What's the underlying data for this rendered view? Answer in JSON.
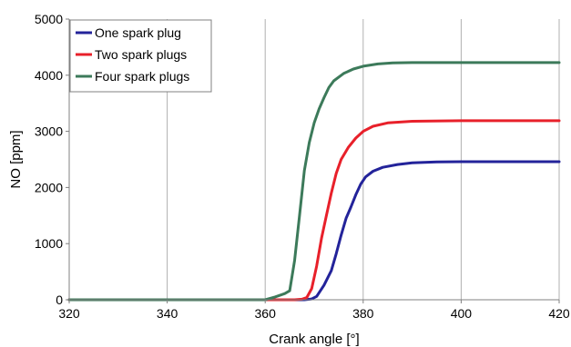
{
  "chart_data": {
    "type": "line",
    "title": "",
    "xlabel": "Crank angle [°]",
    "ylabel": "NO [ppm]",
    "xlim": [
      320,
      420
    ],
    "ylim": [
      0,
      5000
    ],
    "x_ticks": [
      320,
      340,
      360,
      380,
      400,
      420
    ],
    "y_ticks": [
      0,
      1000,
      2000,
      3000,
      4000,
      5000
    ],
    "x_tick_labels": [
      "320",
      "340",
      "360",
      "380",
      "400",
      "420"
    ],
    "y_tick_labels": [
      "0",
      "1000",
      "2000",
      "3000",
      "4000",
      "5000"
    ],
    "grid": {
      "vertical": true,
      "horizontal": false
    },
    "legend_position": "top-left",
    "series": [
      {
        "name": "One spark plug",
        "color": "#23239a",
        "points": [
          [
            320,
            0
          ],
          [
            368,
            0
          ],
          [
            369.5,
            15
          ],
          [
            370.5,
            60
          ],
          [
            372,
            260
          ],
          [
            373.5,
            520
          ],
          [
            374.5,
            820
          ],
          [
            375.5,
            1150
          ],
          [
            376.5,
            1450
          ],
          [
            377.5,
            1650
          ],
          [
            378.5,
            1870
          ],
          [
            379.5,
            2060
          ],
          [
            380.5,
            2190
          ],
          [
            382,
            2290
          ],
          [
            384,
            2360
          ],
          [
            387,
            2410
          ],
          [
            390,
            2440
          ],
          [
            395,
            2455
          ],
          [
            400,
            2460
          ],
          [
            420,
            2460
          ]
        ]
      },
      {
        "name": "Two spark plugs",
        "color": "#e8202a",
        "points": [
          [
            320,
            0
          ],
          [
            366,
            0
          ],
          [
            367.5,
            10
          ],
          [
            368.5,
            40
          ],
          [
            369.5,
            200
          ],
          [
            370.5,
            600
          ],
          [
            371.5,
            1100
          ],
          [
            372.5,
            1500
          ],
          [
            373.5,
            1900
          ],
          [
            374.5,
            2250
          ],
          [
            375.5,
            2500
          ],
          [
            377,
            2720
          ],
          [
            378.5,
            2880
          ],
          [
            380,
            3000
          ],
          [
            382,
            3090
          ],
          [
            385,
            3150
          ],
          [
            390,
            3180
          ],
          [
            400,
            3190
          ],
          [
            420,
            3190
          ]
        ]
      },
      {
        "name": "Four spark plugs",
        "color": "#3c7a5a",
        "points": [
          [
            320,
            0
          ],
          [
            360,
            0
          ],
          [
            362,
            50
          ],
          [
            364,
            110
          ],
          [
            365,
            160
          ],
          [
            366,
            700
          ],
          [
            367,
            1500
          ],
          [
            368,
            2300
          ],
          [
            369,
            2800
          ],
          [
            370,
            3150
          ],
          [
            371,
            3400
          ],
          [
            372,
            3600
          ],
          [
            373,
            3780
          ],
          [
            374,
            3900
          ],
          [
            376,
            4030
          ],
          [
            378,
            4110
          ],
          [
            380,
            4160
          ],
          [
            383,
            4200
          ],
          [
            386,
            4220
          ],
          [
            390,
            4225
          ],
          [
            420,
            4225
          ]
        ]
      }
    ]
  }
}
